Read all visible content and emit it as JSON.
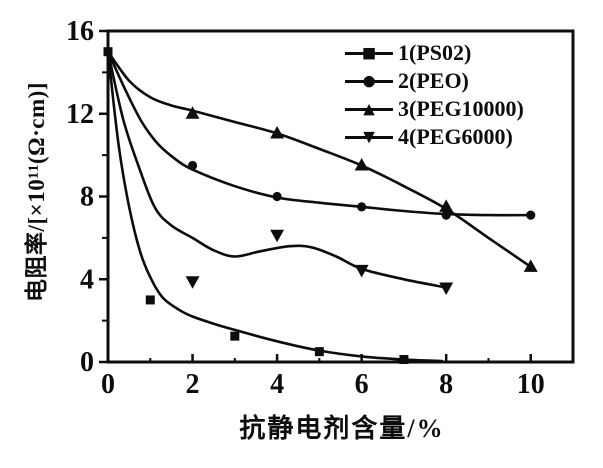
{
  "figure": {
    "background": "#ffffff",
    "ink": "#0d0d0d"
  },
  "chart_data": {
    "type": "line",
    "title": "",
    "xlabel": "抗静电剂含量/%",
    "ylabel": "电阻率/[×10¹¹(Ω·cm)]",
    "xlim": [
      0,
      11
    ],
    "ylim": [
      0,
      16
    ],
    "x_ticks": [
      0,
      2,
      4,
      6,
      8,
      10
    ],
    "x_minor_ticks": [
      1,
      3,
      5,
      7,
      9
    ],
    "y_ticks": [
      0,
      4,
      8,
      12,
      16
    ],
    "y_minor_ticks": [
      2,
      6,
      10,
      14
    ],
    "grid": false,
    "legend_position": "top-right-inside",
    "series": [
      {
        "name": "1(PS02)",
        "marker": "square",
        "points": [
          [
            0,
            15
          ],
          [
            1,
            3.0
          ],
          [
            3,
            1.25
          ],
          [
            5,
            0.5
          ],
          [
            7,
            0.12
          ]
        ],
        "curve": [
          [
            0,
            15
          ],
          [
            0.25,
            10.5
          ],
          [
            0.5,
            7.5
          ],
          [
            0.75,
            5.4
          ],
          [
            1,
            4.1
          ],
          [
            1.3,
            3.1
          ],
          [
            1.7,
            2.5
          ],
          [
            2,
            2.2
          ],
          [
            2.5,
            1.85
          ],
          [
            3,
            1.55
          ],
          [
            4,
            1.0
          ],
          [
            5,
            0.55
          ],
          [
            6,
            0.27
          ],
          [
            7,
            0.12
          ],
          [
            7.9,
            0.05
          ]
        ]
      },
      {
        "name": "2(PEO)",
        "marker": "circle",
        "points": [
          [
            2,
            9.5
          ],
          [
            4,
            8.0
          ],
          [
            6,
            7.5
          ],
          [
            8,
            7.1
          ],
          [
            10,
            7.1
          ]
        ],
        "curve": [
          [
            0,
            15
          ],
          [
            0.4,
            13.2
          ],
          [
            0.8,
            11.6
          ],
          [
            1.2,
            10.5
          ],
          [
            1.6,
            9.8
          ],
          [
            2,
            9.3
          ],
          [
            3,
            8.5
          ],
          [
            4,
            7.95
          ],
          [
            5,
            7.7
          ],
          [
            6,
            7.5
          ],
          [
            7,
            7.3
          ],
          [
            8,
            7.15
          ],
          [
            9,
            7.1
          ],
          [
            10,
            7.1
          ]
        ]
      },
      {
        "name": "3(PEG10000)",
        "marker": "triangle-up",
        "points": [
          [
            2,
            12.0
          ],
          [
            4,
            11.05
          ],
          [
            6,
            9.5
          ],
          [
            8,
            7.5
          ],
          [
            10,
            4.6
          ]
        ],
        "curve": [
          [
            0,
            15
          ],
          [
            0.5,
            13.6
          ],
          [
            1,
            12.8
          ],
          [
            1.5,
            12.4
          ],
          [
            2,
            12.15
          ],
          [
            3,
            11.6
          ],
          [
            4,
            11.05
          ],
          [
            5,
            10.3
          ],
          [
            6,
            9.5
          ],
          [
            7,
            8.5
          ],
          [
            8,
            7.4
          ],
          [
            9,
            6.0
          ],
          [
            10,
            4.6
          ]
        ]
      },
      {
        "name": "4(PEG6000)",
        "marker": "triangle-down",
        "points": [
          [
            2,
            3.9
          ],
          [
            4,
            6.15
          ],
          [
            6,
            4.45
          ],
          [
            8,
            3.6
          ]
        ],
        "curve": [
          [
            0,
            15
          ],
          [
            0.35,
            11.8
          ],
          [
            0.7,
            9.6
          ],
          [
            1.1,
            7.5
          ],
          [
            1.5,
            6.6
          ],
          [
            2,
            6.0
          ],
          [
            2.5,
            5.4
          ],
          [
            3,
            5.1
          ],
          [
            3.6,
            5.35
          ],
          [
            4.3,
            5.6
          ],
          [
            4.8,
            5.55
          ],
          [
            5.4,
            5.1
          ],
          [
            6,
            4.5
          ],
          [
            7,
            4.0
          ],
          [
            8,
            3.6
          ]
        ]
      }
    ]
  }
}
